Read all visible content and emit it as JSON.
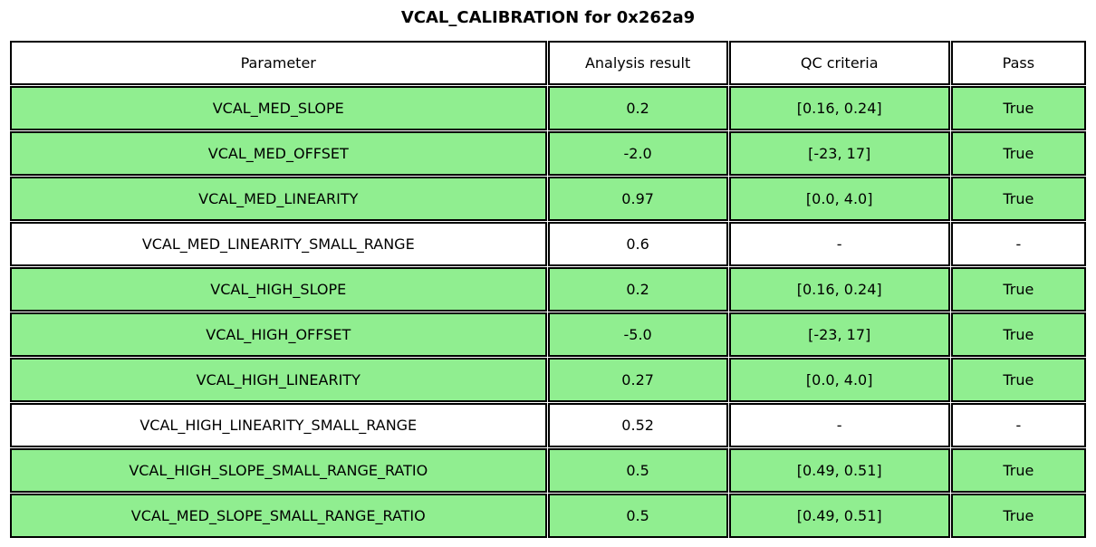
{
  "chart_data": {
    "type": "table",
    "title": "VCAL_CALIBRATION for 0x262a9",
    "columns": [
      "Parameter",
      "Analysis result",
      "QC criteria",
      "Pass"
    ],
    "rows": [
      [
        "VCAL_MED_SLOPE",
        "0.2",
        "[0.16, 0.24]",
        "True"
      ],
      [
        "VCAL_MED_OFFSET",
        "-2.0",
        "[-23, 17]",
        "True"
      ],
      [
        "VCAL_MED_LINEARITY",
        "0.97",
        "[0.0, 4.0]",
        "True"
      ],
      [
        "VCAL_MED_LINEARITY_SMALL_RANGE",
        "0.6",
        "-",
        "-"
      ],
      [
        "VCAL_HIGH_SLOPE",
        "0.2",
        "[0.16, 0.24]",
        "True"
      ],
      [
        "VCAL_HIGH_OFFSET",
        "-5.0",
        "[-23, 17]",
        "True"
      ],
      [
        "VCAL_HIGH_LINEARITY",
        "0.27",
        "[0.0, 4.0]",
        "True"
      ],
      [
        "VCAL_HIGH_LINEARITY_SMALL_RANGE",
        "0.52",
        "-",
        "-"
      ],
      [
        "VCAL_HIGH_SLOPE_SMALL_RANGE_RATIO",
        "0.5",
        "[0.49, 0.51]",
        "True"
      ],
      [
        "VCAL_MED_SLOPE_SMALL_RANGE_RATIO",
        "0.5",
        "[0.49, 0.51]",
        "True"
      ]
    ],
    "row_highlight": [
      true,
      true,
      true,
      false,
      true,
      true,
      true,
      false,
      true,
      true
    ],
    "layout": {
      "legend": "none",
      "grid": "cell-borders",
      "title_position": "top-center"
    },
    "colors": {
      "pass_row_bg": "#90EE90",
      "neutral_row_bg": "#FFFFFF",
      "border": "#000000",
      "text": "#000000",
      "background": "#FFFFFF"
    }
  }
}
